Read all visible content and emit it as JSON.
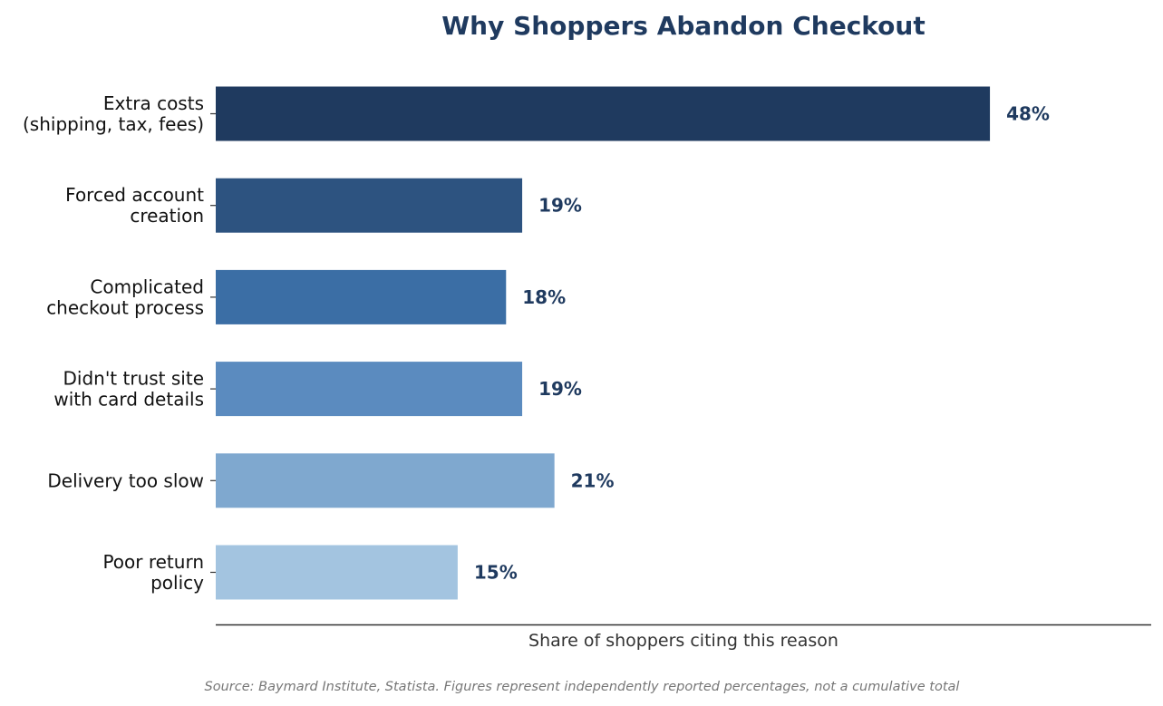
{
  "chart_data": {
    "type": "bar",
    "orientation": "horizontal",
    "title": "Why Shoppers Abandon Checkout",
    "xlabel": "Share of shoppers citing this reason",
    "ylabel": "",
    "categories": [
      [
        "Extra costs",
        "(shipping, tax, fees)"
      ],
      [
        "Forced account",
        "creation"
      ],
      [
        "Complicated",
        "checkout process"
      ],
      [
        "Didn't trust site",
        "with card details"
      ],
      [
        "Delivery too slow"
      ],
      [
        "Poor return",
        "policy"
      ]
    ],
    "values": [
      48,
      19,
      18,
      19,
      21,
      15
    ],
    "value_labels": [
      "48%",
      "19%",
      "18%",
      "19%",
      "21%",
      "15%"
    ],
    "colors": [
      "#1f3a5f",
      "#2d5380",
      "#3b6ea5",
      "#5b8bbf",
      "#7fa8cf",
      "#a3c4e0"
    ],
    "xlim": [
      0,
      58
    ],
    "grid": false,
    "legend": "none",
    "source": "Source: Baymard Institute, Statista. Figures represent independently reported percentages, not a cumulative total"
  }
}
